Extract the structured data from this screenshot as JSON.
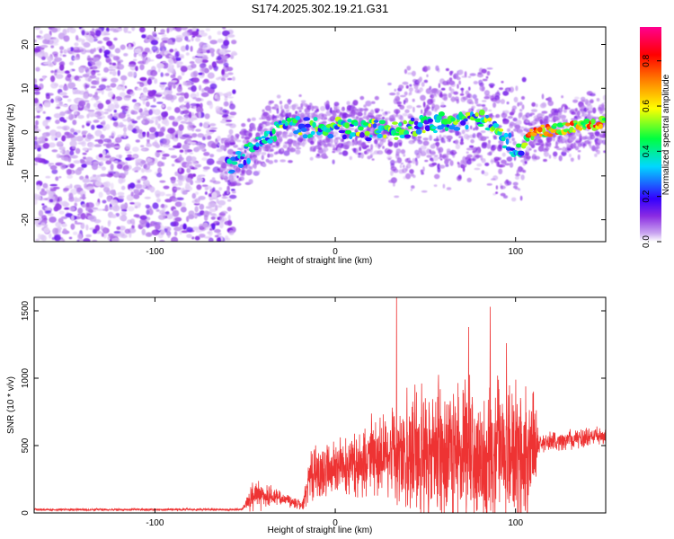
{
  "page_title": "S174.2025.302.19.21.G31",
  "chart_data": [
    {
      "type": "heatmap",
      "title": "S174.2025.302.19.21.G31",
      "xlabel": "Height of straight line (km)",
      "ylabel": "Frequency (Hz)",
      "xlim": [
        -167,
        150
      ],
      "ylim": [
        -25,
        24
      ],
      "x_ticks": [
        -100,
        0,
        100
      ],
      "x_tick_labels": [
        "-100",
        "0",
        "100"
      ],
      "y_ticks": [
        -20,
        -10,
        0,
        10,
        20
      ],
      "y_tick_labels": [
        "-20",
        "-10",
        "0",
        "10",
        "20"
      ],
      "colorbar": {
        "label": "Normalized spectral amplitude",
        "range": [
          0,
          0.95
        ],
        "ticks": [
          0,
          0.2,
          0.4,
          0.6,
          0.8
        ],
        "tick_labels": [
          "0.0",
          "0.2",
          "0.4",
          "0.6",
          "0.8"
        ],
        "colors": [
          "#ffffff",
          "#c9a4f0",
          "#8a2be2",
          "#3300ff",
          "#00d8ff",
          "#00ff40",
          "#ffff00",
          "#ff8000",
          "#ff0000",
          "#ff0090"
        ]
      },
      "signal_ridge": {
        "description_segments": [
          {
            "x": -60,
            "freq": -8
          },
          {
            "x": -30,
            "freq": 1
          },
          {
            "x": 0,
            "freq": 1
          },
          {
            "x": 30,
            "freq": 0
          },
          {
            "x": 55,
            "freq": 2
          },
          {
            "x": 80,
            "freq": 3
          },
          {
            "x": 100,
            "freq": -4
          },
          {
            "x": 110,
            "freq": 0
          },
          {
            "x": 150,
            "freq": 2
          }
        ],
        "noise_region_x": [
          -167,
          -60
        ]
      }
    },
    {
      "type": "line",
      "title": "",
      "xlabel": "Height of straight line (km)",
      "ylabel": "SNR (10 * v/v)",
      "xlim": [
        -167,
        150
      ],
      "ylim": [
        0,
        1600
      ],
      "x_ticks": [
        -100,
        0,
        100
      ],
      "x_tick_labels": [
        "-100",
        "0",
        "100"
      ],
      "y_ticks": [
        0,
        500,
        1000,
        1500
      ],
      "y_tick_labels": [
        "0",
        "500",
        "1000",
        "1500"
      ],
      "line_color": "#ee3333",
      "envelope": [
        {
          "x": -167,
          "base": 25,
          "amp": 10
        },
        {
          "x": -52,
          "base": 25,
          "amp": 10
        },
        {
          "x": -45,
          "base": 140,
          "amp": 150
        },
        {
          "x": -30,
          "base": 110,
          "amp": 60
        },
        {
          "x": -18,
          "base": 60,
          "amp": 40
        },
        {
          "x": -15,
          "base": 280,
          "amp": 220
        },
        {
          "x": 5,
          "base": 330,
          "amp": 250
        },
        {
          "x": 20,
          "base": 400,
          "amp": 350
        },
        {
          "x": 35,
          "base": 450,
          "amp": 550
        },
        {
          "x": 60,
          "base": 450,
          "amp": 650
        },
        {
          "x": 85,
          "base": 450,
          "amp": 700
        },
        {
          "x": 110,
          "base": 430,
          "amp": 550
        },
        {
          "x": 113,
          "base": 520,
          "amp": 80
        },
        {
          "x": 150,
          "base": 570,
          "amp": 90
        }
      ],
      "peaks": [
        {
          "x": 34,
          "y": 1600
        },
        {
          "x": 86,
          "y": 1530
        },
        {
          "x": 74,
          "y": 1380
        },
        {
          "x": 95,
          "y": 1260
        }
      ]
    }
  ]
}
